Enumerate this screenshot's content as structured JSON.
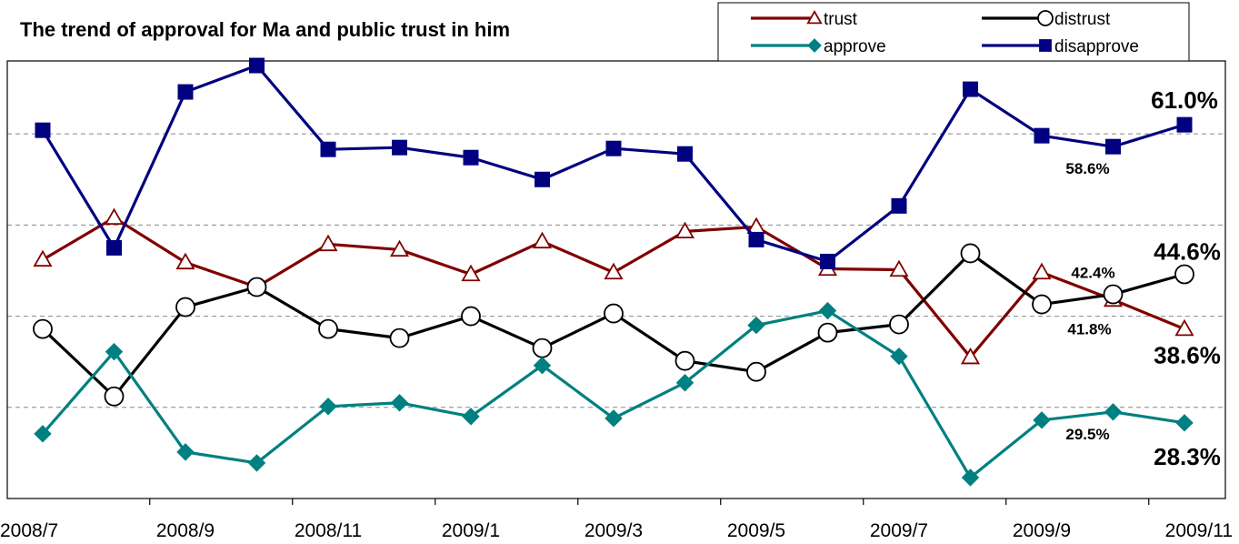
{
  "chart_data": {
    "type": "line",
    "title": "The trend of approval for Ma and public trust in him",
    "x": [
      "2008/7",
      "2008/8",
      "2008/9",
      "2008/10",
      "2008/11",
      "2008/12",
      "2009/1",
      "2009/2",
      "2009/3",
      "2009/4",
      "2009/5",
      "2009/6",
      "2009/7",
      "2009/8",
      "2009/9",
      "2009/10",
      "2009/11"
    ],
    "x_tick_labels": [
      "2008/7",
      "2008/9",
      "2008/11",
      "2009/1",
      "2009/3",
      "2009/5",
      "2009/7",
      "2009/9",
      "2009/11"
    ],
    "ylim": [
      20,
      68
    ],
    "grid": true,
    "legend_position": "top-right",
    "series": [
      {
        "name": "trust",
        "color": "#800000",
        "marker": "triangle-open",
        "values": [
          46.2,
          50.8,
          45.9,
          43.2,
          47.9,
          47.3,
          44.6,
          48.2,
          44.8,
          49.3,
          49.8,
          45.2,
          45.1,
          35.5,
          44.8,
          41.8,
          38.6
        ]
      },
      {
        "name": "distrust",
        "color": "#000000",
        "marker": "circle-open",
        "values": [
          38.6,
          31.2,
          41.0,
          43.2,
          38.6,
          37.6,
          40.0,
          36.5,
          40.3,
          35.1,
          33.9,
          38.2,
          39.1,
          46.9,
          41.3,
          42.4,
          44.6
        ]
      },
      {
        "name": "approve",
        "color": "#008080",
        "marker": "diamond-filled",
        "values": [
          27.1,
          36.1,
          25.1,
          23.9,
          30.1,
          30.5,
          29.0,
          34.6,
          28.8,
          32.7,
          39.0,
          40.6,
          35.6,
          22.3,
          28.6,
          29.5,
          28.3
        ]
      },
      {
        "name": "disapprove",
        "color": "#000080",
        "marker": "square-filled",
        "values": [
          60.4,
          47.5,
          64.6,
          67.5,
          58.3,
          58.5,
          57.4,
          55.0,
          58.4,
          57.8,
          48.4,
          46.0,
          52.1,
          64.9,
          59.8,
          58.6,
          61.0
        ]
      }
    ],
    "annotations": [
      {
        "series": "disapprove",
        "index": 16,
        "text": "61.0%",
        "size": "large"
      },
      {
        "series": "disapprove",
        "index": 15,
        "text": "58.6%",
        "size": "small"
      },
      {
        "series": "distrust",
        "index": 16,
        "text": "44.6%",
        "size": "large"
      },
      {
        "series": "distrust",
        "index": 15,
        "text": "42.4%",
        "size": "small"
      },
      {
        "series": "trust",
        "index": 15,
        "text": "41.8%",
        "size": "small"
      },
      {
        "series": "trust",
        "index": 16,
        "text": "38.6%",
        "size": "large"
      },
      {
        "series": "approve",
        "index": 15,
        "text": "29.5%",
        "size": "small"
      },
      {
        "series": "approve",
        "index": 16,
        "text": "28.3%",
        "size": "large"
      }
    ]
  }
}
